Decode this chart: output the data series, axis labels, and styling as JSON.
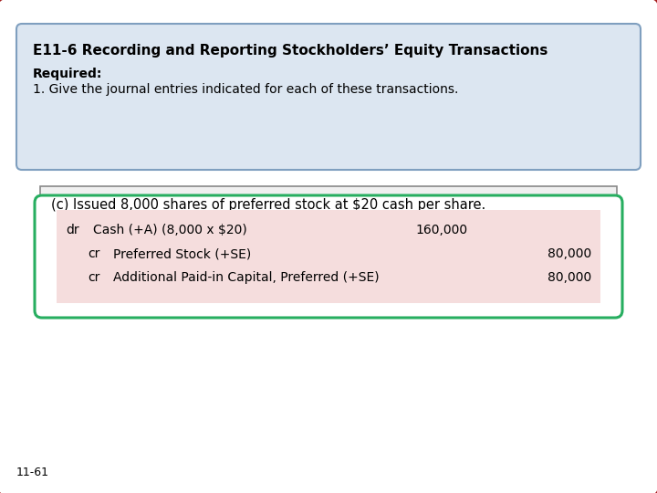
{
  "title": "E11-6 Recording and Reporting Stockholders’ Equity Transactions",
  "required_label": "Required:",
  "required_text": "1. Give the journal entries indicated for each of these transactions.",
  "scenario": "(c) Issued 8,000 shares of preferred stock at $20 cash per share.",
  "journal_entries": [
    {
      "indent": "dr",
      "account": "Cash (+A) (8,000 x $20)",
      "debit": "160,000",
      "credit": ""
    },
    {
      "indent": "cr",
      "account": "Preferred Stock (+SE)",
      "debit": "",
      "credit": "80,000"
    },
    {
      "indent": "cr",
      "account": "Additional Paid-in Capital, Preferred (+SE)",
      "debit": "",
      "credit": "80,000"
    }
  ],
  "footer": "11-61",
  "outer_border_color": "#a52020",
  "header_bg_color": "#dce6f1",
  "header_border_color": "#7f9fbf",
  "scenario_bg_color": "#f0f0f0",
  "scenario_border_color": "#888888",
  "journal_bg_color": "#f5dddd",
  "journal_border_color": "#27ae60",
  "bg_color": "#ffffff"
}
